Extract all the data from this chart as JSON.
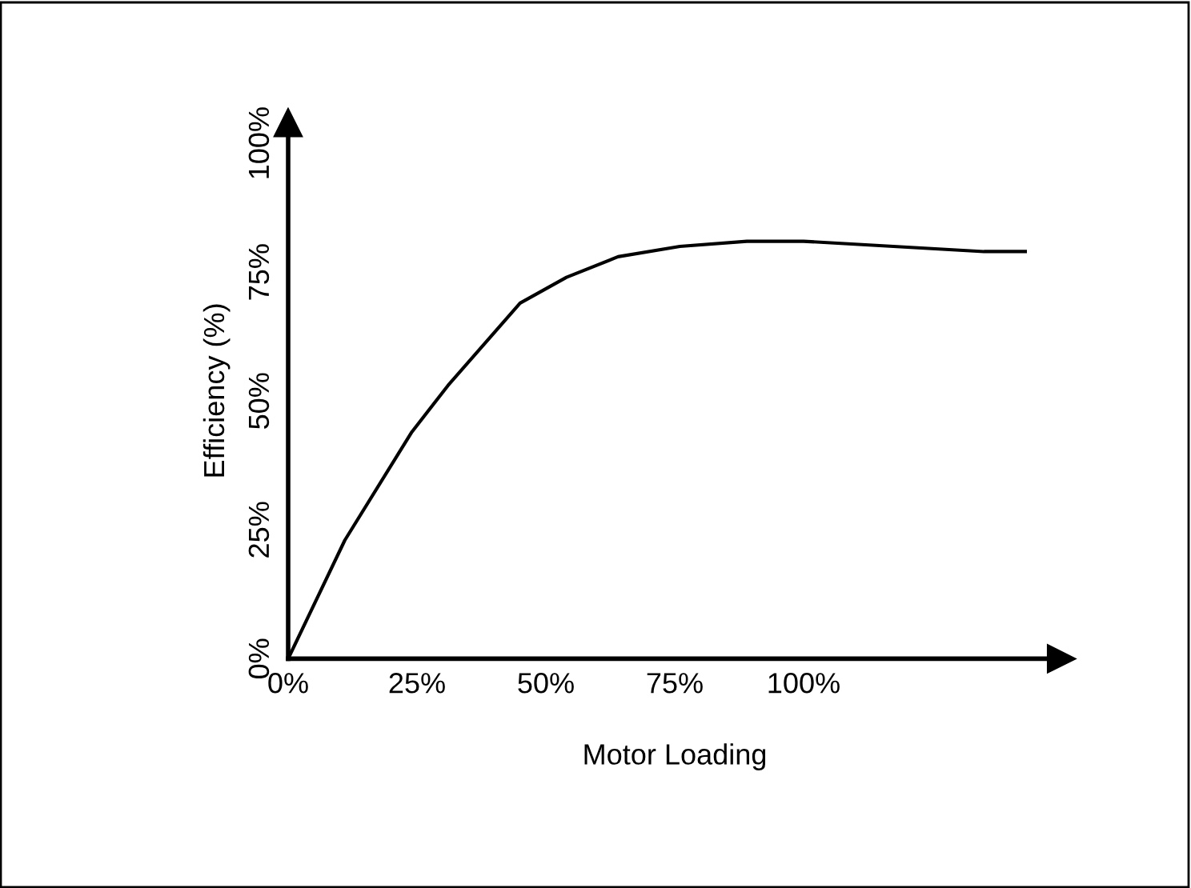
{
  "chart_data": {
    "type": "line",
    "xlabel": "Motor Loading",
    "ylabel": "Efficiency (%)",
    "x": [
      0,
      11,
      24,
      31,
      45,
      54,
      64,
      76,
      89,
      100,
      135,
      143
    ],
    "series": [
      {
        "color": "#000000",
        "values": [
          0,
          23,
          44,
          53,
          69,
          74,
          78,
          80,
          81,
          81,
          79,
          79
        ]
      }
    ],
    "xlim": [
      0,
      150
    ],
    "ylim": [
      0,
      104
    ],
    "xticks": [
      {
        "value": 0,
        "label": "0%"
      },
      {
        "value": 25,
        "label": "25%"
      },
      {
        "value": 50,
        "label": "50%"
      },
      {
        "value": 75,
        "label": "75%"
      },
      {
        "value": 100,
        "label": "100%"
      }
    ],
    "yticks": [
      {
        "value": 0,
        "label": "0%"
      },
      {
        "value": 25,
        "label": "25%"
      },
      {
        "value": 50,
        "label": "50%"
      },
      {
        "value": 75,
        "label": "75%"
      },
      {
        "value": 100,
        "label": "100%"
      }
    ],
    "grid": false,
    "legend": false,
    "marker": "none",
    "line_style": "solid"
  }
}
